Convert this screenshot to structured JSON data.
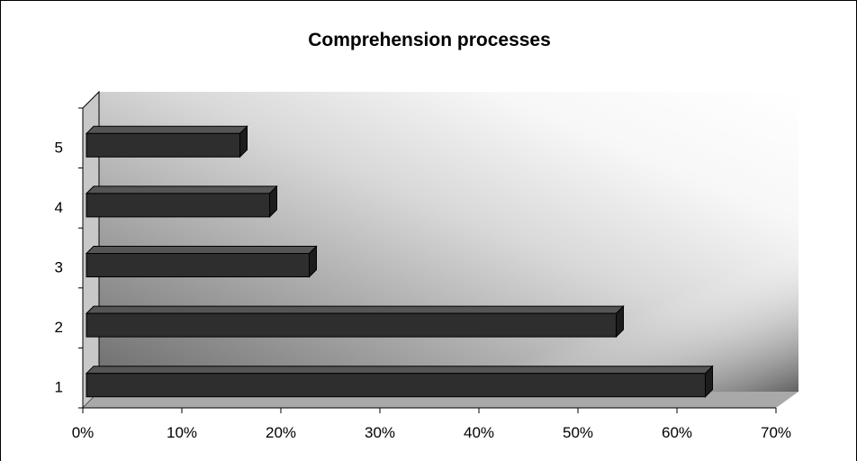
{
  "chart_data": {
    "type": "bar",
    "orientation": "horizontal",
    "title": "Comprehension processes",
    "categories": [
      "1",
      "2",
      "3",
      "4",
      "5"
    ],
    "values": [
      62.5,
      53.5,
      22.5,
      18.5,
      15.5
    ],
    "value_unit": "%",
    "xlabel": "",
    "ylabel": "",
    "xlim": [
      0,
      70
    ],
    "x_ticks": [
      "0%",
      "10%",
      "20%",
      "30%",
      "40%",
      "50%",
      "60%",
      "70%"
    ],
    "grid": false,
    "legend": "none",
    "bar_color": "#2e2e2e",
    "background_gradient": [
      "#777777",
      "#f5f5f5",
      "#777777"
    ]
  }
}
